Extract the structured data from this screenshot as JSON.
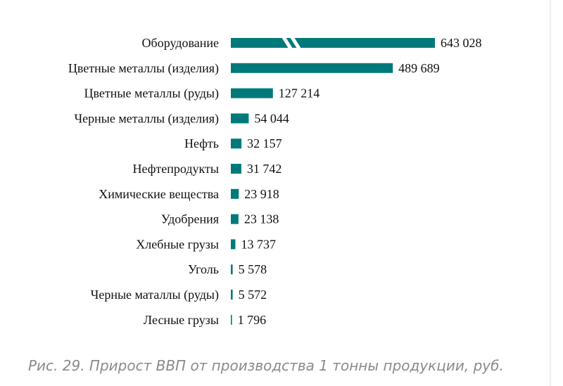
{
  "colors": {
    "bar": "#00797a",
    "text": "#111111",
    "caption": "#8a8a8a"
  },
  "chart_data": {
    "type": "bar",
    "orientation": "horizontal",
    "axis_break_on_first_bar": true,
    "categories": [
      "Оборудование",
      "Цветные металлы (изделия)",
      "Цветные металлы (руды)",
      "Черные металлы (изделия)",
      "Нефть",
      "Нефтепродукты",
      "Химические вещества",
      "Удобрения",
      "Хлебные грузы",
      "Уголь",
      "Черные маталлы (руды)",
      "Лесные грузы"
    ],
    "values": [
      643028,
      489689,
      127214,
      54044,
      32157,
      31742,
      23918,
      23138,
      13737,
      5578,
      5572,
      1796
    ],
    "value_labels": [
      "643 028",
      "489 689",
      "127 214",
      "54 044",
      "32 157",
      "31 742",
      "23 918",
      "23 138",
      "13 737",
      "5 578",
      "5 572",
      "1 796"
    ],
    "grid": false,
    "legend": "none"
  },
  "caption": "Рис. 29. Прирост ВВП от производства 1 тонны продукции, руб."
}
